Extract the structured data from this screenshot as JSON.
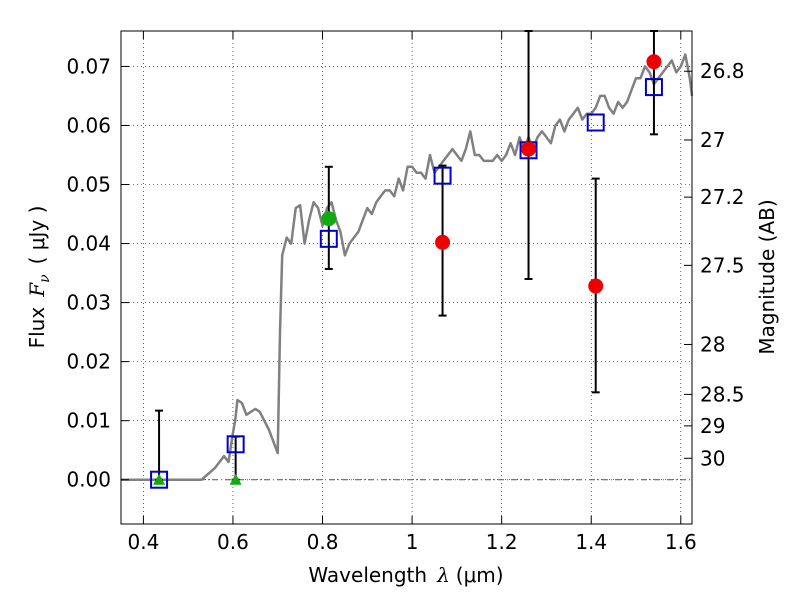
{
  "chart_data": {
    "type": "scatter",
    "title": "",
    "xlabel": "Wavelength",
    "xlabel_symbol": "λ",
    "xlabel_unit": "(μm)",
    "ylabel": "Flux",
    "ylabel_symbol": "F",
    "ylabel_subscript": "ν",
    "ylabel_unit": "( μJy )",
    "y2label": "Magnitude (AB)",
    "xlim": [
      0.35,
      1.625
    ],
    "ylim": [
      -0.0075,
      0.076
    ],
    "grid": true,
    "x_ticks": [
      {
        "value": 0.4,
        "label": "0.4"
      },
      {
        "value": 0.6,
        "label": "0.6"
      },
      {
        "value": 0.8,
        "label": "0.8"
      },
      {
        "value": 1.0,
        "label": "1"
      },
      {
        "value": 1.2,
        "label": "1.2"
      },
      {
        "value": 1.4,
        "label": "1.4"
      },
      {
        "value": 1.6,
        "label": "1.6"
      }
    ],
    "y_ticks": [
      {
        "value": 0.0,
        "label": "0.00"
      },
      {
        "value": 0.01,
        "label": "0.01"
      },
      {
        "value": 0.02,
        "label": "0.02"
      },
      {
        "value": 0.03,
        "label": "0.03"
      },
      {
        "value": 0.04,
        "label": "0.04"
      },
      {
        "value": 0.05,
        "label": "0.05"
      },
      {
        "value": 0.06,
        "label": "0.06"
      },
      {
        "value": 0.07,
        "label": "0.07"
      }
    ],
    "mag_ticks": [
      {
        "mag": 26.8,
        "label": "26.8"
      },
      {
        "mag": 27.0,
        "label": "27"
      },
      {
        "mag": 27.2,
        "label": "27.2"
      },
      {
        "mag": 27.5,
        "label": "27.5"
      },
      {
        "mag": 28.0,
        "label": "28"
      },
      {
        "mag": 28.5,
        "label": "28.5"
      },
      {
        "mag": 29.0,
        "label": "29"
      },
      {
        "mag": 30.0,
        "label": "30"
      }
    ],
    "mag_zero_point": 23.9,
    "zero_line": {
      "y": 0.0,
      "color": "#555555",
      "style": "dash-dot"
    },
    "colors": {
      "sed": "#808080",
      "model": "#0000cc",
      "detection": "#ee0000",
      "detection_green": "#11aa11",
      "upper_limit": "#11aa11",
      "errorbar": "#000000"
    },
    "series": [
      {
        "kind": "sed_line",
        "x": [
          0.35,
          0.53,
          0.56,
          0.58,
          0.59,
          0.6,
          0.605,
          0.61,
          0.62,
          0.63,
          0.65,
          0.66,
          0.67,
          0.68,
          0.69,
          0.7,
          0.705,
          0.71,
          0.72,
          0.73,
          0.74,
          0.75,
          0.76,
          0.77,
          0.78,
          0.79,
          0.8,
          0.81,
          0.82,
          0.83,
          0.84,
          0.85,
          0.86,
          0.87,
          0.88,
          0.89,
          0.9,
          0.91,
          0.92,
          0.93,
          0.94,
          0.95,
          0.96,
          0.97,
          0.98,
          0.99,
          1.0,
          1.01,
          1.02,
          1.03,
          1.04,
          1.05,
          1.06,
          1.07,
          1.08,
          1.09,
          1.1,
          1.11,
          1.12,
          1.13,
          1.14,
          1.15,
          1.16,
          1.17,
          1.18,
          1.19,
          1.2,
          1.21,
          1.22,
          1.23,
          1.24,
          1.25,
          1.26,
          1.27,
          1.28,
          1.29,
          1.3,
          1.31,
          1.32,
          1.33,
          1.34,
          1.35,
          1.36,
          1.37,
          1.38,
          1.39,
          1.4,
          1.41,
          1.42,
          1.43,
          1.44,
          1.45,
          1.46,
          1.47,
          1.48,
          1.49,
          1.5,
          1.51,
          1.52,
          1.53,
          1.54,
          1.55,
          1.56,
          1.57,
          1.58,
          1.59,
          1.6,
          1.61,
          1.62,
          1.625
        ],
        "y": [
          0.0,
          0.0,
          0.002,
          0.004,
          0.003,
          0.008,
          0.01,
          0.0135,
          0.013,
          0.011,
          0.012,
          0.0115,
          0.01,
          0.0085,
          0.0065,
          0.0045,
          0.025,
          0.038,
          0.041,
          0.04,
          0.046,
          0.0465,
          0.04,
          0.044,
          0.047,
          0.046,
          0.043,
          0.046,
          0.047,
          0.044,
          0.042,
          0.038,
          0.04,
          0.041,
          0.042,
          0.044,
          0.046,
          0.045,
          0.047,
          0.048,
          0.049,
          0.049,
          0.048,
          0.051,
          0.049,
          0.053,
          0.053,
          0.052,
          0.052,
          0.051,
          0.055,
          0.052,
          0.053,
          0.054,
          0.055,
          0.056,
          0.055,
          0.054,
          0.056,
          0.059,
          0.055,
          0.055,
          0.054,
          0.054,
          0.054,
          0.055,
          0.054,
          0.055,
          0.057,
          0.055,
          0.058,
          0.056,
          0.058,
          0.056,
          0.058,
          0.059,
          0.058,
          0.057,
          0.06,
          0.061,
          0.059,
          0.061,
          0.062,
          0.063,
          0.061,
          0.062,
          0.062,
          0.063,
          0.065,
          0.065,
          0.063,
          0.062,
          0.064,
          0.063,
          0.064,
          0.066,
          0.068,
          0.068,
          0.07,
          0.069,
          0.067,
          0.068,
          0.069,
          0.07,
          0.071,
          0.069,
          0.07,
          0.072,
          0.068,
          0.065
        ]
      },
      {
        "kind": "model_squares",
        "x": [
          0.435,
          0.606,
          0.814,
          1.068,
          1.26,
          1.41,
          1.54
        ],
        "y": [
          0.0,
          0.006,
          0.0408,
          0.0515,
          0.0558,
          0.0605,
          0.0665
        ]
      },
      {
        "kind": "detections",
        "points": [
          {
            "x": 0.814,
            "y": 0.0442,
            "err_low": 0.0357,
            "err_high": 0.053,
            "color": "detection_green"
          },
          {
            "x": 1.068,
            "y": 0.0402,
            "err_low": 0.0278,
            "err_high": 0.0532,
            "color": "detection"
          },
          {
            "x": 1.26,
            "y": 0.056,
            "err_low": 0.034,
            "err_high": 0.076,
            "color": "detection"
          },
          {
            "x": 1.41,
            "y": 0.0328,
            "err_low": 0.0148,
            "err_high": 0.051,
            "color": "detection"
          },
          {
            "x": 1.54,
            "y": 0.0708,
            "err_low": 0.0585,
            "err_high": 0.076,
            "color": "detection"
          }
        ]
      },
      {
        "kind": "upper_limits",
        "points": [
          {
            "x": 0.435,
            "y": 0.0,
            "err_low": 0.0,
            "err_high": 0.0117
          },
          {
            "x": 0.606,
            "y": 0.0,
            "err_low": 0.0,
            "err_high": 0.0073
          }
        ]
      }
    ]
  }
}
